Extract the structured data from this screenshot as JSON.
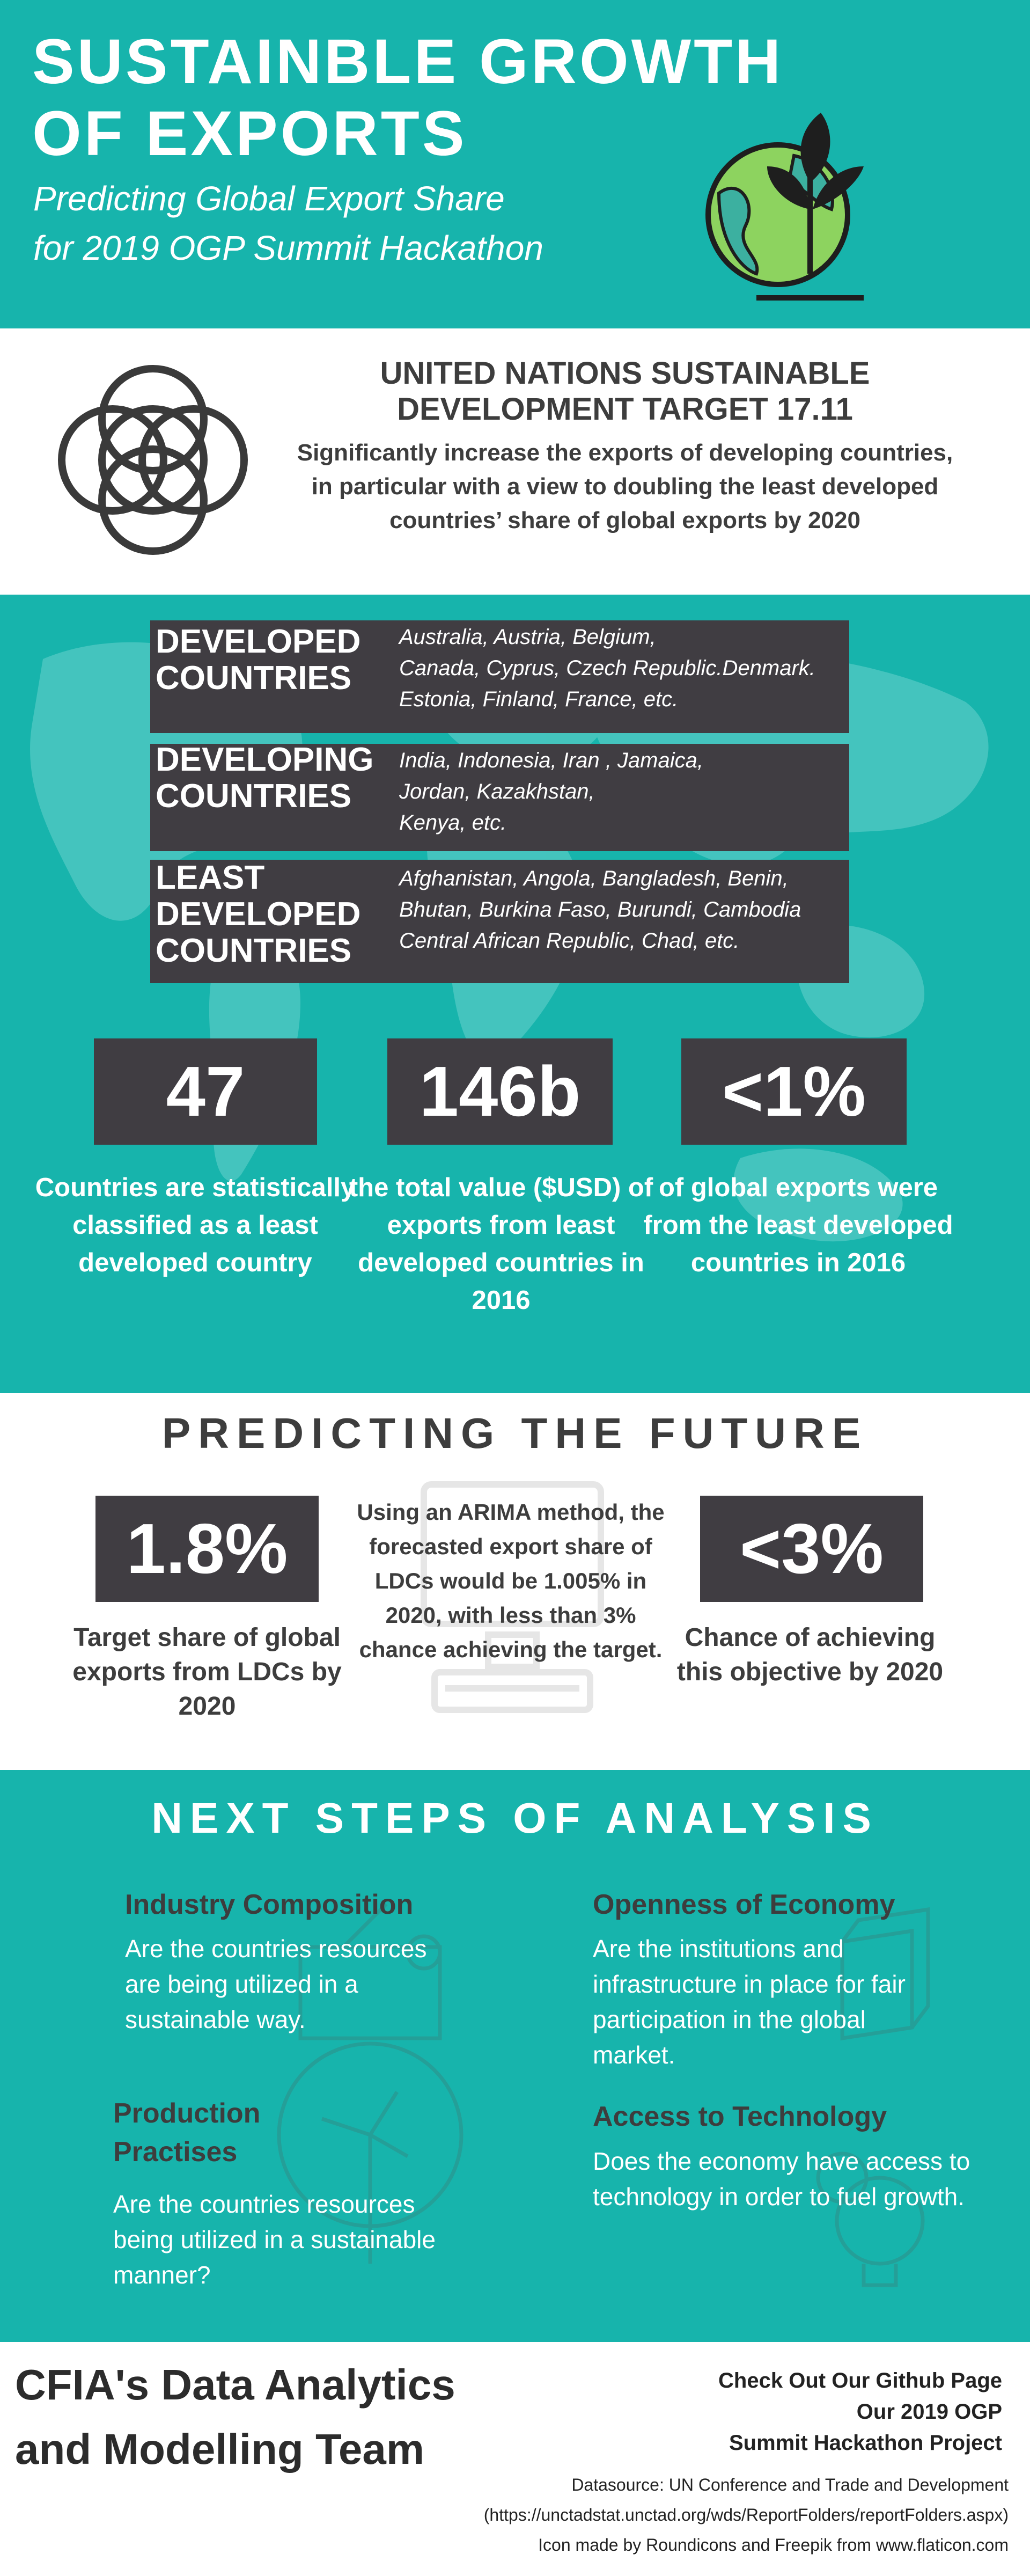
{
  "header": {
    "title_lines": [
      "SUSTAINBLE GROWTH",
      "OF EXPORTS"
    ],
    "subtitle_lines": [
      "Predicting Global Export Share",
      "for 2019 OGP Summit Hackathon"
    ]
  },
  "un_target": {
    "title_lines": [
      "UNITED NATIONS SUSTAINABLE",
      "DEVELOPMENT TARGET 17.11"
    ],
    "text": "Significantly increase the exports of  developing countries, in particular with a view to doubling the least developed countries’ share of global exports by 2020"
  },
  "classifications": [
    {
      "label_lines": [
        "DEVELOPED",
        "COUNTRIES"
      ],
      "country_lines": [
        "Australia, Austria, Belgium,",
        "Canada, Cyprus, Czech Republic.Denmark.",
        "Estonia, Finland, France, etc."
      ]
    },
    {
      "label_lines": [
        "DEVELOPING",
        "COUNTRIES"
      ],
      "country_lines": [
        "India, Indonesia, Iran , Jamaica,",
        "Jordan, Kazakhstan,",
        "Kenya, etc."
      ]
    },
    {
      "label_lines": [
        "LEAST",
        "DEVELOPED",
        "COUNTRIES"
      ],
      "country_lines": [
        "Afghanistan, Angola, Bangladesh, Benin,",
        "Bhutan, Burkina Faso, Burundi, Cambodia",
        "Central African Republic, Chad, etc."
      ]
    }
  ],
  "stats": [
    {
      "value": "47",
      "text": "Countries are statistically classified as a least developed country"
    },
    {
      "value": "146b",
      "text": "the total value ($USD) of exports from least developed countries in 2016"
    },
    {
      "value": "<1%",
      "text": "of global exports were from the least developed countries in 2016"
    }
  ],
  "predicting": {
    "title": "PREDICTING THE FUTURE",
    "left": {
      "value": "1.8%",
      "text": "Target share of global exports from LDCs by 2020"
    },
    "middle": "Using an ARIMA method, the forecasted export share of LDCs would be 1.005% in 2020, with less than 3% chance achieving the target.",
    "right": {
      "value": "<3%",
      "text": "Chance of achieving this objective by 2020"
    }
  },
  "next_steps": {
    "title": "NEXT STEPS OF ANALYSIS",
    "items": [
      {
        "heading": "Industry Composition",
        "text": "Are the countries resources are being utilized in a sustainable way."
      },
      {
        "heading": "Openness of Economy",
        "text": "Are the institutions and infrastructure in place for fair participation in the global market."
      },
      {
        "heading": "Production Practises",
        "text": "Are the countries resources being utilized in a sustainable manner?"
      },
      {
        "heading": "Access to  Technology",
        "text": "Does the economy have access to technology in order to fuel growth."
      }
    ]
  },
  "footer": {
    "team_lines": [
      "CFIA's Data Analytics",
      "and Modelling Team"
    ],
    "link_lines": [
      "Check Out Our Github Page",
      "Our  2019 OGP",
      "Summit Hackathon Project"
    ],
    "credit_lines": [
      "Datasource: UN Conference and Trade and Development",
      "(https://unctadstat.unctad.org/wds/ReportFolders/reportFolders.aspx)",
      "Icon made by Roundicons  and Freepik from www.flaticon.com"
    ]
  }
}
